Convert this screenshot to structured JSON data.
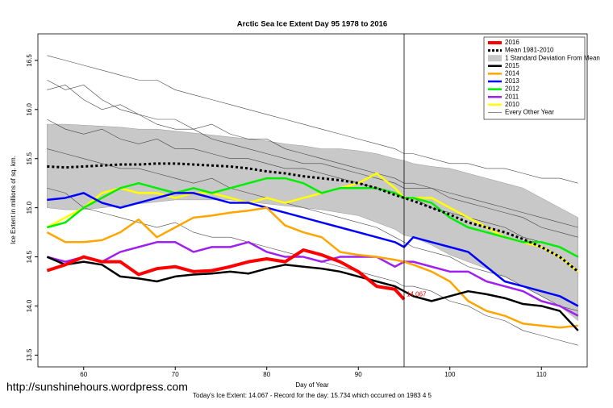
{
  "chart_data": {
    "type": "line",
    "title": "Arctic Sea Ice Extent Day 95 1978 to 2016",
    "x_label": "Day of Year",
    "y_label": "Ice Extent in millions of sq. km.",
    "footer": "Today's Ice Extent: 14.067  - Record for the day: 15.734 which occurred on 1983 4 5",
    "source": "http://sunshinehours.wordpress.com",
    "xlim": [
      55,
      115
    ],
    "ylim": [
      13.38,
      16.77
    ],
    "xticks": [
      60,
      70,
      80,
      90,
      100,
      110
    ],
    "yticks": [
      13.5,
      {
        "value": 14,
        "label": "14.0"
      },
      14.5,
      {
        "value": 15,
        "label": "15.0"
      },
      15.5,
      {
        "value": 16,
        "label": "16.0"
      },
      16.5
    ],
    "marker_x": 95,
    "x": [
      56,
      58,
      60,
      62,
      64,
      66,
      68,
      70,
      72,
      74,
      76,
      78,
      80,
      82,
      84,
      86,
      88,
      90,
      92,
      94,
      95,
      96,
      98,
      100,
      102,
      104,
      106,
      108,
      110,
      112,
      114
    ],
    "band": {
      "name": "1 Standard Deviation From Mean",
      "color": "#c8c8c8",
      "upper": [
        15.85,
        15.85,
        15.84,
        15.83,
        15.82,
        15.8,
        15.8,
        15.78,
        15.76,
        15.74,
        15.72,
        15.7,
        15.68,
        15.65,
        15.63,
        15.6,
        15.6,
        15.58,
        15.55,
        15.5,
        15.48,
        15.45,
        15.42,
        15.4,
        15.35,
        15.3,
        15.25,
        15.2,
        15.1,
        15.0,
        14.9
      ],
      "lower": [
        15.0,
        14.98,
        14.98,
        15.0,
        15.02,
        15.04,
        15.06,
        15.08,
        15.08,
        15.08,
        15.08,
        15.06,
        15.04,
        15.02,
        15.0,
        14.98,
        14.95,
        14.92,
        14.85,
        14.78,
        14.72,
        14.7,
        14.62,
        14.52,
        14.45,
        14.38,
        14.3,
        14.2,
        14.1,
        14.0,
        13.85
      ]
    },
    "other_years": {
      "name": "Every Other Year",
      "color": "#444444",
      "lines": [
        [
          16.55,
          16.5,
          16.45,
          16.4,
          16.35,
          16.3,
          16.3,
          16.2,
          16.15,
          16.1,
          16.05,
          16.0,
          15.95,
          15.9,
          15.85,
          15.8,
          15.75,
          15.7,
          15.65,
          15.6,
          15.55,
          15.55,
          15.5,
          15.45,
          15.45,
          15.4,
          15.4,
          15.35,
          15.3,
          15.3,
          15.25
        ],
        [
          16.2,
          16.25,
          16.1,
          16.0,
          16.05,
          15.95,
          15.9,
          15.9,
          15.8,
          15.85,
          15.75,
          15.7,
          15.7,
          15.6,
          15.55,
          15.5,
          15.45,
          15.4,
          15.35,
          15.3,
          15.25,
          15.25,
          15.2,
          15.1,
          15.05,
          15.0,
          14.95,
          14.9,
          14.8,
          14.75,
          14.7
        ],
        [
          15.9,
          15.8,
          15.75,
          15.8,
          15.7,
          15.65,
          15.7,
          15.6,
          15.6,
          15.55,
          15.5,
          15.5,
          15.45,
          15.4,
          15.4,
          15.35,
          15.3,
          15.25,
          15.2,
          15.15,
          15.1,
          15.1,
          15.0,
          14.95,
          14.9,
          14.85,
          14.8,
          14.7,
          14.65,
          14.6,
          14.5
        ],
        [
          15.6,
          15.55,
          15.5,
          15.45,
          15.4,
          15.4,
          15.35,
          15.3,
          15.25,
          15.3,
          15.2,
          15.15,
          15.1,
          15.05,
          15.0,
          14.95,
          14.9,
          14.85,
          14.8,
          14.7,
          14.65,
          14.6,
          14.55,
          14.5,
          14.4,
          14.35,
          14.3,
          14.2,
          14.1,
          14.0,
          13.95
        ],
        [
          15.2,
          15.15,
          15.0,
          14.95,
          14.9,
          14.85,
          14.8,
          14.85,
          14.75,
          14.7,
          14.7,
          14.65,
          14.6,
          14.55,
          14.5,
          14.45,
          14.4,
          14.35,
          14.3,
          14.25,
          14.2,
          14.2,
          14.15,
          14.05,
          14.0,
          13.9,
          13.85,
          13.75,
          13.7,
          13.65,
          13.6
        ],
        [
          16.3,
          16.2,
          16.25,
          16.1,
          16.0,
          15.95,
          15.85,
          15.8,
          15.8,
          15.7,
          15.65,
          15.6,
          15.55,
          15.5,
          15.45,
          15.45,
          15.4,
          15.35,
          15.3,
          15.25,
          15.2,
          15.2,
          15.2,
          15.15,
          15.1,
          15.05,
          15.0,
          14.95,
          14.9,
          14.85,
          14.8
        ]
      ]
    },
    "series": [
      {
        "name": "2016",
        "color": "#ff0000",
        "width": 4,
        "values": [
          14.36,
          14.42,
          14.5,
          14.45,
          14.45,
          14.32,
          14.38,
          14.4,
          14.35,
          14.36,
          14.4,
          14.45,
          14.48,
          14.45,
          14.57,
          14.52,
          14.45,
          14.35,
          14.2,
          14.17,
          14.067,
          null,
          null,
          null,
          null,
          null,
          null,
          null,
          null,
          null,
          null
        ]
      },
      {
        "name": "Mean 1981-2010",
        "color": "#000000",
        "width": 3,
        "dashed": true,
        "values": [
          15.42,
          15.41,
          15.42,
          15.43,
          15.44,
          15.44,
          15.45,
          15.45,
          15.44,
          15.43,
          15.42,
          15.4,
          15.37,
          15.35,
          15.32,
          15.3,
          15.28,
          15.25,
          15.2,
          15.13,
          15.1,
          15.07,
          15.0,
          14.93,
          14.85,
          14.8,
          14.75,
          14.68,
          14.6,
          14.5,
          14.35
        ]
      },
      {
        "name": "2015",
        "color": "#000000",
        "width": 2.5,
        "values": [
          14.5,
          14.42,
          14.45,
          14.42,
          14.3,
          14.28,
          14.25,
          14.3,
          14.32,
          14.33,
          14.35,
          14.33,
          14.38,
          14.42,
          14.4,
          14.38,
          14.35,
          14.3,
          14.25,
          14.2,
          14.15,
          14.1,
          14.05,
          14.1,
          14.15,
          14.12,
          14.08,
          14.02,
          14.0,
          13.95,
          13.75
        ]
      },
      {
        "name": "2014",
        "color": "#ffa500",
        "width": 2.5,
        "values": [
          14.75,
          14.65,
          14.65,
          14.67,
          14.75,
          14.88,
          14.7,
          14.8,
          14.9,
          14.92,
          14.95,
          14.97,
          15.0,
          14.82,
          14.75,
          14.7,
          14.55,
          14.52,
          14.5,
          14.47,
          14.45,
          14.42,
          14.35,
          14.25,
          14.05,
          13.95,
          13.9,
          13.82,
          13.8,
          13.78,
          13.8
        ]
      },
      {
        "name": "2013",
        "color": "#0000ff",
        "width": 2.5,
        "values": [
          15.08,
          15.1,
          15.15,
          15.05,
          15.0,
          15.05,
          15.1,
          15.15,
          15.15,
          15.1,
          15.05,
          15.05,
          15.0,
          14.95,
          14.9,
          14.85,
          14.8,
          14.75,
          14.7,
          14.65,
          14.6,
          14.7,
          14.65,
          14.6,
          14.55,
          14.4,
          14.25,
          14.2,
          14.15,
          14.1,
          14.0
        ]
      },
      {
        "name": "2012",
        "color": "#00ee00",
        "width": 2.5,
        "values": [
          14.8,
          14.85,
          15.0,
          15.1,
          15.2,
          15.25,
          15.2,
          15.15,
          15.2,
          15.15,
          15.2,
          15.25,
          15.3,
          15.3,
          15.25,
          15.15,
          15.2,
          15.2,
          15.2,
          15.15,
          15.1,
          15.1,
          15.05,
          14.9,
          14.8,
          14.75,
          14.7,
          14.65,
          14.65,
          14.6,
          14.5
        ]
      },
      {
        "name": "2011",
        "color": "#a020f0",
        "width": 2.5,
        "values": [
          14.5,
          14.45,
          14.5,
          14.45,
          14.55,
          14.6,
          14.65,
          14.65,
          14.55,
          14.6,
          14.6,
          14.65,
          14.55,
          14.5,
          14.5,
          14.45,
          14.5,
          14.5,
          14.5,
          14.4,
          14.45,
          14.45,
          14.4,
          14.35,
          14.35,
          14.25,
          14.2,
          14.15,
          14.05,
          14.0,
          13.9
        ]
      },
      {
        "name": "2010",
        "color": "#ffff00",
        "width": 2.5,
        "values": [
          14.8,
          14.9,
          15.0,
          15.15,
          15.2,
          15.15,
          15.15,
          15.1,
          15.15,
          15.15,
          15.1,
          15.05,
          15.1,
          15.05,
          15.1,
          15.15,
          15.2,
          15.25,
          15.35,
          15.2,
          15.1,
          15.1,
          15.1,
          15.0,
          14.9,
          14.8,
          14.7,
          14.65,
          14.6,
          14.5,
          14.35
        ]
      }
    ]
  }
}
